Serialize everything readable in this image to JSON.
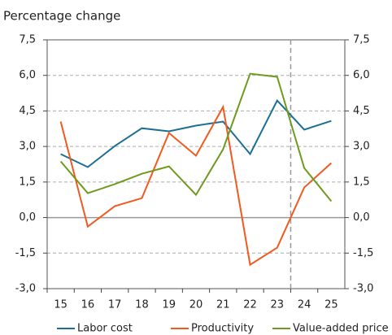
{
  "chart_data": {
    "type": "line",
    "subtitle": "Percentage change",
    "categories": [
      "15",
      "16",
      "17",
      "18",
      "19",
      "20",
      "21",
      "22",
      "23",
      "24",
      "25"
    ],
    "series": [
      {
        "name": "Labor cost",
        "color": "#1b6f97",
        "values": [
          2.68,
          2.13,
          3.02,
          3.77,
          3.64,
          3.88,
          4.05,
          2.68,
          4.94,
          3.71,
          4.08
        ]
      },
      {
        "name": "Productivity",
        "color": "#f05a1e",
        "values": [
          4.05,
          -0.38,
          0.48,
          0.82,
          3.57,
          2.61,
          4.67,
          -1.99,
          -1.27,
          1.27,
          2.3
        ]
      },
      {
        "name": "Value-added price",
        "color": "#6f9a1e",
        "values": [
          2.37,
          1.03,
          1.41,
          1.85,
          2.16,
          0.96,
          2.88,
          6.07,
          5.94,
          2.09,
          0.69
        ]
      }
    ],
    "ylim": [
      -3,
      7.5
    ],
    "yticks": [
      {
        "value": -3,
        "label": "-3,0"
      },
      {
        "value": -1.5,
        "label": "-1,5"
      },
      {
        "value": 0,
        "label": "0,0"
      },
      {
        "value": 1.5,
        "label": "1,5"
      },
      {
        "value": 3,
        "label": "3,0"
      },
      {
        "value": 4.5,
        "label": "4,5"
      },
      {
        "value": 6,
        "label": "6,0"
      },
      {
        "value": 7.5,
        "label": "7,5"
      }
    ],
    "y2lim": [
      -3,
      7.5
    ],
    "y2ticks": [
      {
        "value": -3,
        "label": "-3,0"
      },
      {
        "value": -1.5,
        "label": "-1,5"
      },
      {
        "value": 0,
        "label": "0,0"
      },
      {
        "value": 1.5,
        "label": "1,5"
      },
      {
        "value": 3,
        "label": "3,0"
      },
      {
        "value": 4.5,
        "label": "4,5"
      },
      {
        "value": 6,
        "label": "6,0"
      },
      {
        "value": 7.5,
        "label": "7,5"
      }
    ],
    "grid": true,
    "divider_after_category": "23",
    "legend": "bottom"
  }
}
